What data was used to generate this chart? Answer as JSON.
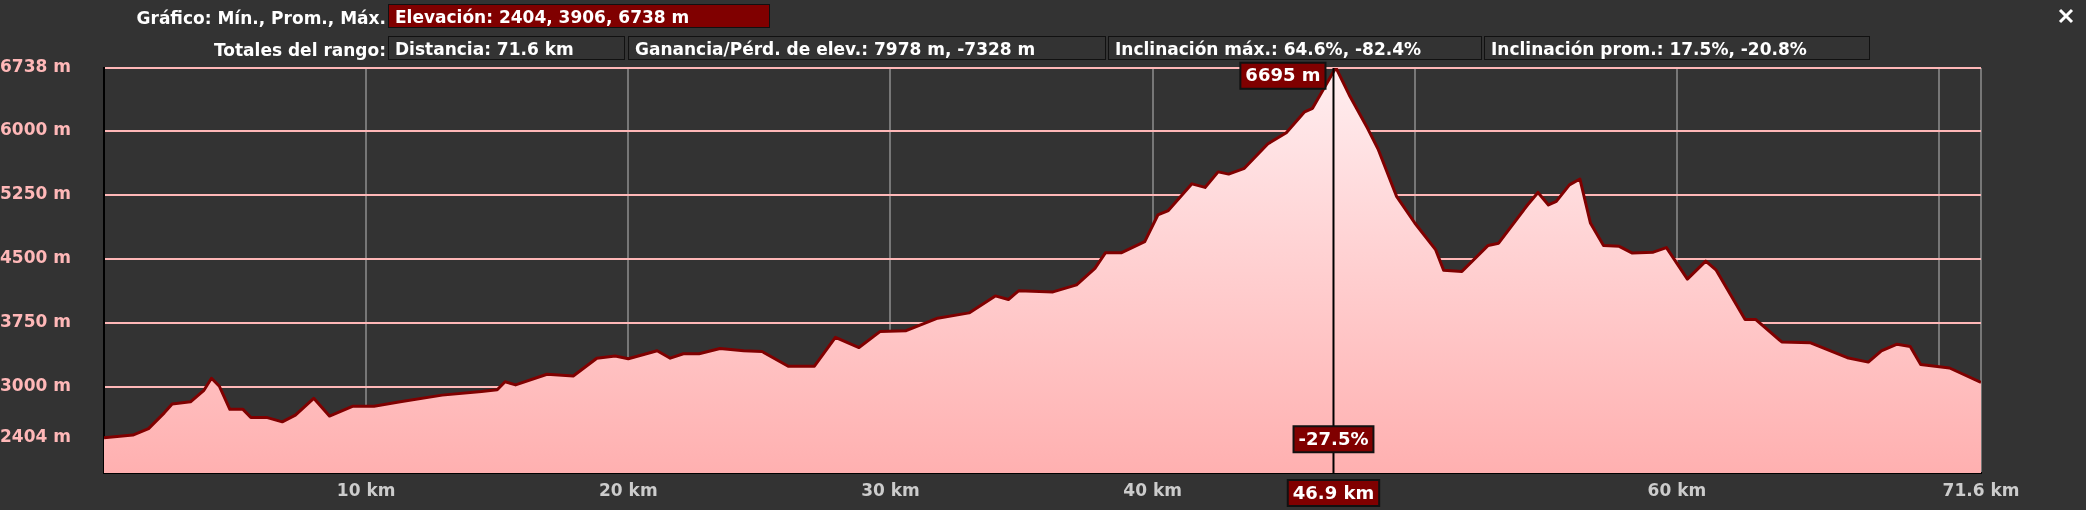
{
  "chart_data": {
    "type": "area",
    "title": "Gráfico: Mín., Prom., Máx.",
    "subtitle": "Totales del rango:",
    "annotations": [
      "Elevación: 2404, 3906, 6738 m",
      "Distancia: 71.6 km",
      "Ganancia/Pérd. de elev.: 7978 m, -7328 m",
      "Inclinación máx.: 64.6%, -82.4%",
      "Inclinación prom.: 17.5%, -20.8%",
      {
        "text": "6695 m",
        "x": 46.9,
        "y": 6695
      },
      {
        "text": "-27.5%",
        "x": 46.9,
        "y": 2150
      }
    ],
    "x": [
      0,
      1.1,
      1.7,
      2.3,
      2.6,
      3.3,
      3.8,
      4.1,
      4.4,
      4.8,
      5.3,
      5.6,
      6.2,
      6.8,
      7.3,
      8.0,
      8.6,
      9.5,
      10.3,
      11.3,
      12.9,
      14.4,
      15.0,
      15.3,
      15.7,
      16.9,
      17.9,
      18.8,
      19.5,
      20.0,
      21.1,
      21.6,
      22.1,
      22.7,
      23.5,
      24.4,
      25.1,
      26.1,
      27.1,
      27.9,
      28.8,
      29.6,
      30.6,
      31.8,
      33.0,
      34.0,
      34.5,
      34.9,
      36.2,
      37.1,
      37.8,
      38.2,
      38.8,
      39.7,
      40.2,
      40.6,
      41.5,
      42.0,
      42.5,
      42.9,
      43.5,
      44.4,
      45.1,
      45.8,
      46.1,
      46.9,
      47.0,
      47.5,
      48.2,
      48.6,
      49.3,
      50.0,
      50.8,
      51.1,
      51.8,
      52.8,
      53.2,
      54.3,
      54.7,
      55.1,
      55.4,
      55.9,
      56.3,
      56.7,
      57.2,
      57.8,
      58.3,
      59.1,
      59.6,
      60.4,
      61.1,
      61.5,
      62.6,
      63.0,
      64.0,
      65.1,
      66.5,
      67.3,
      67.8,
      68.4,
      68.9,
      69.3,
      70.4,
      71.6
    ],
    "series": [
      {
        "color": "#800000",
        "values": [
          2404,
          2435,
          2510,
          2695,
          2800,
          2825,
          2955,
          3100,
          3007,
          2736,
          2736,
          2642,
          2642,
          2590,
          2668,
          2866,
          2658,
          2773,
          2773,
          2825,
          2903,
          2945,
          2966,
          3060,
          3023,
          3148,
          3127,
          3336,
          3362,
          3330,
          3424,
          3336,
          3388,
          3388,
          3450,
          3424,
          3414,
          3242,
          3242,
          3581,
          3461,
          3648,
          3659,
          3805,
          3867,
          4066,
          4024,
          4128,
          4113,
          4196,
          4389,
          4571,
          4571,
          4702,
          5015,
          5067,
          5380,
          5338,
          5520,
          5494,
          5562,
          5849,
          5979,
          6224,
          6266,
          6695,
          6738,
          6422,
          6031,
          5789,
          5237,
          4921,
          4605,
          4368,
          4353,
          4658,
          4684,
          5132,
          5279,
          5132,
          5174,
          5368,
          5437,
          4921,
          4658,
          4647,
          4568,
          4579,
          4632,
          4263,
          4474,
          4368,
          3790,
          3790,
          3526,
          3516,
          3342,
          3290,
          3421,
          3500,
          3474,
          3263,
          3221,
          3053
        ]
      }
    ],
    "xlim": [
      0,
      71.6
    ],
    "xticks": [
      {
        "value": 10,
        "label": "10 km"
      },
      {
        "value": 20,
        "label": "20 km"
      },
      {
        "value": 30,
        "label": "30 km"
      },
      {
        "value": 40,
        "label": "40 km"
      },
      {
        "value": 50,
        "label": null
      },
      {
        "value": 60,
        "label": "60 km"
      },
      {
        "value": 70,
        "label": null
      },
      {
        "value": 71.6,
        "label": "71.6 km"
      }
    ],
    "ylim": [
      1990,
      6738
    ],
    "yticks": [
      {
        "value": 2404,
        "label": "2404 m"
      },
      {
        "value": 3000,
        "label": "3000 m"
      },
      {
        "value": 3750,
        "label": "3750 m"
      },
      {
        "value": 4500,
        "label": "4500 m"
      },
      {
        "value": 5250,
        "label": "5250 m"
      },
      {
        "value": 6000,
        "label": "6000 m"
      },
      {
        "value": 6738,
        "label": "6738 m"
      }
    ],
    "ref_lines": [
      {
        "axis": "x",
        "value": 46.9,
        "label": "46.9 km",
        "color": "#000000"
      }
    ],
    "grid": true,
    "legend": false
  }
}
